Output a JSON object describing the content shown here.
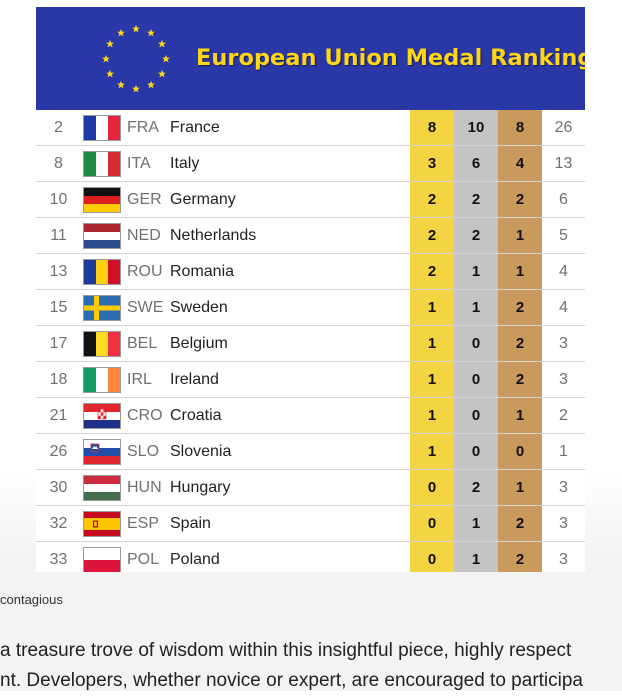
{
  "header": {
    "title": "European Union Medal Ranking",
    "flag_color": "#2a37a6",
    "title_color": "#ffd617"
  },
  "colors": {
    "gold": "#f5d444",
    "silver": "#c4c4c4",
    "bronze": "#c99a5c"
  },
  "rows": [
    {
      "rank": "2",
      "code": "FRA",
      "country": "France",
      "flag": "flag-france-icon",
      "gold": "8",
      "silver": "10",
      "bronze": "8",
      "total": "26"
    },
    {
      "rank": "8",
      "code": "ITA",
      "country": "Italy",
      "flag": "flag-italy-icon",
      "gold": "3",
      "silver": "6",
      "bronze": "4",
      "total": "13"
    },
    {
      "rank": "10",
      "code": "GER",
      "country": "Germany",
      "flag": "flag-germany-icon",
      "gold": "2",
      "silver": "2",
      "bronze": "2",
      "total": "6"
    },
    {
      "rank": "11",
      "code": "NED",
      "country": "Netherlands",
      "flag": "flag-netherlands-icon",
      "gold": "2",
      "silver": "2",
      "bronze": "1",
      "total": "5"
    },
    {
      "rank": "13",
      "code": "ROU",
      "country": "Romania",
      "flag": "flag-romania-icon",
      "gold": "2",
      "silver": "1",
      "bronze": "1",
      "total": "4"
    },
    {
      "rank": "15",
      "code": "SWE",
      "country": "Sweden",
      "flag": "flag-sweden-icon",
      "gold": "1",
      "silver": "1",
      "bronze": "2",
      "total": "4"
    },
    {
      "rank": "17",
      "code": "BEL",
      "country": "Belgium",
      "flag": "flag-belgium-icon",
      "gold": "1",
      "silver": "0",
      "bronze": "2",
      "total": "3"
    },
    {
      "rank": "18",
      "code": "IRL",
      "country": "Ireland",
      "flag": "flag-ireland-icon",
      "gold": "1",
      "silver": "0",
      "bronze": "2",
      "total": "3"
    },
    {
      "rank": "21",
      "code": "CRO",
      "country": "Croatia",
      "flag": "flag-croatia-icon",
      "gold": "1",
      "silver": "0",
      "bronze": "1",
      "total": "2"
    },
    {
      "rank": "26",
      "code": "SLO",
      "country": "Slovenia",
      "flag": "flag-slovenia-icon",
      "gold": "1",
      "silver": "0",
      "bronze": "0",
      "total": "1"
    },
    {
      "rank": "30",
      "code": "HUN",
      "country": "Hungary",
      "flag": "flag-hungary-icon",
      "gold": "0",
      "silver": "2",
      "bronze": "1",
      "total": "3"
    },
    {
      "rank": "32",
      "code": "ESP",
      "country": "Spain",
      "flag": "flag-spain-icon",
      "gold": "0",
      "silver": "1",
      "bronze": "2",
      "total": "3"
    },
    {
      "rank": "33",
      "code": "POL",
      "country": "Poland",
      "flag": "flag-poland-icon",
      "gold": "0",
      "silver": "1",
      "bronze": "2",
      "total": "3"
    }
  ],
  "caption": "contagious",
  "body": {
    "line1": "a treasure trove of wisdom within this insightful piece, highly respect",
    "line2": "nt. Developers, whether novice or expert, are encouraged to participa"
  }
}
